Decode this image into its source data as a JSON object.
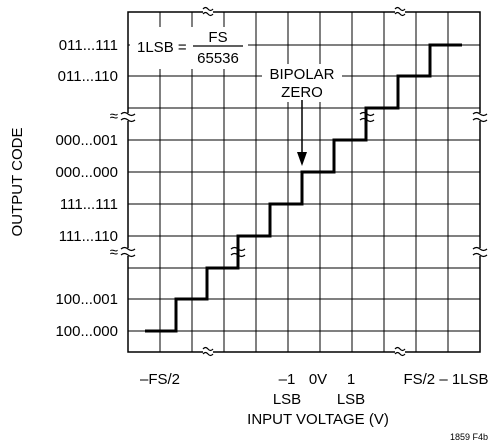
{
  "figure_label": "1859 F4b",
  "y_axis_label": "OUTPUT CODE",
  "x_axis_label": "INPUT VOLTAGE (V)",
  "y_ticks": [
    "011...111",
    "011...110",
    "000...001",
    "000...000",
    "111...111",
    "111...110",
    "100...001",
    "100...000"
  ],
  "x_ticks": {
    "neg_fs_half": "–FS/2",
    "neg_1lsb_top": "–1",
    "neg_1lsb_bottom": "LSB",
    "zero": "0V",
    "pos_1lsb_top": "1",
    "pos_1lsb_bottom": "LSB",
    "fs_half_minus": "FS/2 – 1LSB"
  },
  "annotation": {
    "lsb_prefix": "1LSB =",
    "numerator": "FS",
    "denominator": "65536",
    "bipolar_line1": "BIPOLAR",
    "bipolar_line2": "ZERO"
  },
  "break_symbol": "≈",
  "colors": {
    "ink": "#000000",
    "grid": "#000000",
    "background": "#ffffff"
  }
}
